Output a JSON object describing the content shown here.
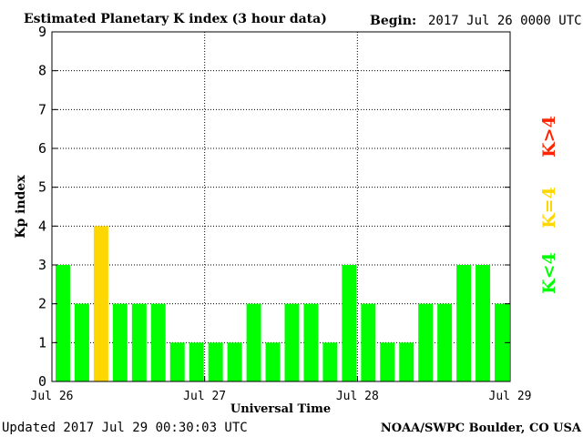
{
  "chart_data": {
    "type": "bar",
    "title": "Estimated Planetary K index (3 hour data)",
    "begin_label": "Begin:",
    "begin_value": "2017 Jul 26 0000 UTC",
    "ylabel": "Kp index",
    "xlabel": "Universal Time",
    "ylim": [
      0,
      9
    ],
    "y_ticks": [
      "0",
      "1",
      "2",
      "3",
      "4",
      "5",
      "6",
      "7",
      "8",
      "9"
    ],
    "x_ticks": [
      "Jul 26",
      "Jul 27",
      "Jul 28",
      "Jul 29"
    ],
    "grid": true,
    "values": [
      3,
      2,
      4,
      2,
      2,
      2,
      1,
      1,
      1,
      1,
      2,
      1,
      2,
      2,
      1,
      3,
      2,
      1,
      1,
      2,
      2,
      3,
      3,
      2
    ],
    "legend": [
      {
        "label": "K<4",
        "color": "#00ff00"
      },
      {
        "label": "K=4",
        "color": "#ffd700"
      },
      {
        "label": "K>4",
        "color": "#ff2200"
      }
    ],
    "colors": {
      "low": "#00ff00",
      "equal": "#ffd700",
      "high": "#ff2200"
    }
  },
  "footer": {
    "updated": "Updated 2017 Jul 29 00:30:03 UTC",
    "source": "NOAA/SWPC Boulder, CO USA"
  }
}
